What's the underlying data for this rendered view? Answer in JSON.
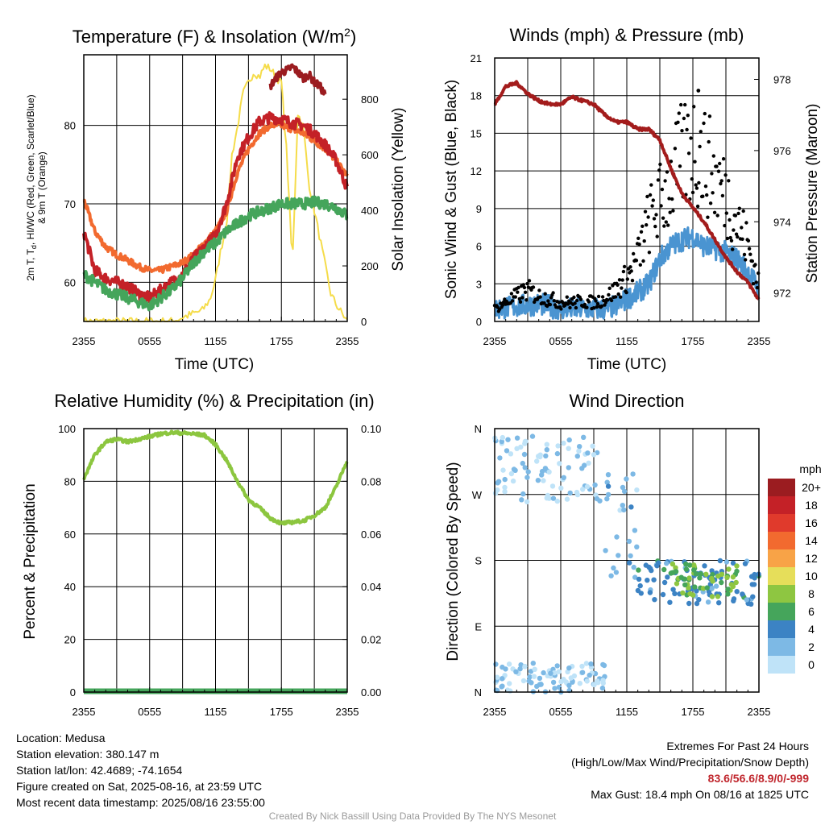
{
  "charts": {
    "temperature": {
      "title": "Temperature (F) & Insolation (W/m²)",
      "title_main": "Temperature (F) & Insolation (W/m",
      "title_sup": "2",
      "title_end": ")",
      "xlabel": "Time (UTC)",
      "ylabel_lines": [
        "2m T, T",
        "d",
        ", HI/WC (Red, Green, Scarlet/Blue)",
        "& 9m T (Orange)"
      ],
      "y2label": "Solar Insolation (Yellow)",
      "x_ticks": [
        "2355",
        "0555",
        "1155",
        "1755",
        "2355"
      ],
      "y_ticks": [
        "60",
        "70",
        "80"
      ],
      "y2_ticks": [
        "0",
        "200",
        "400",
        "600",
        "800"
      ]
    },
    "winds": {
      "title": "Winds (mph) & Pressure (mb)",
      "xlabel": "Time (UTC)",
      "ylabel": "Sonic Wind & Gust (Blue, Black)",
      "y2label": "Station Pressure (Maroon)",
      "x_ticks": [
        "2355",
        "0555",
        "1155",
        "1755",
        "2355"
      ],
      "y_ticks": [
        "0",
        "3",
        "6",
        "9",
        "12",
        "15",
        "18",
        "21"
      ],
      "y2_ticks": [
        "972",
        "974",
        "976",
        "978"
      ]
    },
    "humidity": {
      "title": "Relative Humidity (%) & Precipitation (in)",
      "ylabel": "Percent & Precipitation",
      "x_ticks": [
        "2355",
        "0555",
        "1155",
        "1755",
        "2355"
      ],
      "y_ticks": [
        "0",
        "20",
        "40",
        "60",
        "80",
        "100"
      ],
      "y2_ticks": [
        "0.00",
        "0.02",
        "0.04",
        "0.06",
        "0.08",
        "0.10"
      ]
    },
    "direction": {
      "title": "Wind Direction",
      "ylabel": "Direction (Colored By Speed)",
      "x_ticks": [
        "2355",
        "0555",
        "1155",
        "1755",
        "2355"
      ],
      "y_ticks": [
        "N",
        "E",
        "S",
        "W",
        "N"
      ],
      "legend_title": "mph",
      "legend_labels": [
        "20+",
        "18",
        "16",
        "14",
        "12",
        "10",
        "8",
        "6",
        "4",
        "2",
        "0"
      ],
      "legend_colors": [
        "#9b1c20",
        "#c42127",
        "#e03a2c",
        "#f26a2f",
        "#f8a347",
        "#e6de5a",
        "#8ec641",
        "#45a55b",
        "#3c83c4",
        "#7db9e5",
        "#bfe3f8"
      ]
    }
  },
  "chart_data": [
    {
      "type": "line",
      "x_ticks": [
        "2355",
        "0555",
        "1155",
        "1755",
        "2355"
      ],
      "xlim_hours": [
        0,
        24
      ],
      "ylim": [
        55,
        89
      ],
      "y2lim": [
        0,
        960
      ],
      "series": [
        {
          "color": "#c42127",
          "x": [
            0,
            1,
            2,
            3,
            4,
            5,
            6,
            7,
            8,
            9,
            10,
            11,
            12,
            13,
            14,
            15,
            16,
            17,
            18,
            19,
            20,
            21,
            22,
            23,
            24
          ],
          "y": [
            66.5,
            61.5,
            60.5,
            60,
            59.5,
            58.5,
            58,
            59,
            60,
            61,
            63,
            64.5,
            66,
            70,
            76,
            78.5,
            80.5,
            81,
            80.8,
            80.3,
            80,
            79,
            77.5,
            75.5,
            72
          ]
        },
        {
          "color": "#45a55b",
          "x": [
            0,
            1,
            2,
            3,
            4,
            5,
            6,
            7,
            8,
            9,
            10,
            11,
            12,
            13,
            14,
            15,
            16,
            17,
            18,
            19,
            20,
            21,
            22,
            23,
            24
          ],
          "y": [
            61,
            60,
            59,
            58.5,
            58,
            57.5,
            57,
            58,
            59,
            60.5,
            62.5,
            64,
            65,
            66.5,
            67.5,
            68.5,
            69,
            69.5,
            70,
            70,
            70,
            70.2,
            70,
            69.5,
            68.5
          ]
        },
        {
          "color": "#f26a2f",
          "x": [
            0,
            1,
            2,
            3,
            4,
            5,
            6,
            7,
            8,
            9,
            10,
            11,
            12,
            13,
            14,
            15,
            16,
            17,
            18,
            19,
            20,
            21,
            22,
            23,
            24
          ],
          "y": [
            70.5,
            66.5,
            64.5,
            63.5,
            62.8,
            62,
            61.5,
            61.5,
            62,
            62.5,
            63.5,
            65,
            66.5,
            69,
            74,
            77,
            79,
            80,
            80,
            79.5,
            79,
            78,
            77,
            75.5,
            73.5
          ]
        },
        {
          "color": "#9b1c20",
          "x": [
            17,
            17.5,
            18,
            18.5,
            19,
            19.5,
            20,
            20.5,
            21,
            21.5,
            22
          ],
          "y": [
            85,
            86,
            86.8,
            87,
            87.5,
            86.8,
            86,
            86.5,
            85.5,
            85,
            83.8
          ]
        },
        {
          "color": "#f5dc4a",
          "x": [
            0,
            8,
            10.8,
            11.5,
            12,
            12.5,
            13,
            13.5,
            14,
            14.5,
            15,
            15.5,
            16,
            16.5,
            17,
            17.5,
            18,
            18.5,
            19,
            19.5,
            20,
            20.5,
            21,
            21.5,
            22,
            22.5,
            23,
            23.5,
            24
          ],
          "y": [
            0,
            0,
            40,
            80,
            150,
            260,
            350,
            600,
            700,
            820,
            860,
            900,
            880,
            920,
            910,
            880,
            860,
            600,
            200,
            750,
            700,
            500,
            400,
            300,
            200,
            100,
            60,
            30,
            0
          ]
        }
      ]
    },
    {
      "type": "line",
      "x_ticks": [
        "2355",
        "0555",
        "1155",
        "1755",
        "2355"
      ],
      "xlim_hours": [
        0,
        24
      ],
      "ylim": [
        0,
        21
      ],
      "y2lim": [
        971.2,
        978.6
      ],
      "series": [
        {
          "color": "#4a94d1",
          "x": [
            0,
            2,
            4,
            6,
            8,
            10,
            11,
            12,
            13,
            14,
            15,
            16,
            17,
            18,
            19,
            20,
            21,
            22,
            23,
            24
          ],
          "y": [
            1,
            1.2,
            1.4,
            1,
            1,
            1,
            1.2,
            1.8,
            2.3,
            3,
            5,
            6,
            6.5,
            6.8,
            6,
            5.8,
            5.5,
            5,
            4,
            2.5
          ]
        },
        {
          "color": "#000000",
          "x": [
            0,
            1,
            2,
            3,
            4,
            5,
            6,
            7,
            8,
            9,
            10,
            11,
            12,
            13,
            14,
            15,
            16,
            17,
            18,
            19,
            20,
            21,
            22,
            23,
            24
          ],
          "y": [
            1,
            1.5,
            2,
            2.5,
            2,
            1.8,
            1.5,
            1.5,
            1.6,
            1.5,
            1.8,
            2.5,
            3.5,
            5,
            8,
            9.5,
            11,
            13,
            14,
            13,
            11.5,
            10,
            8,
            6,
            3
          ]
        },
        {
          "color": "#a31c1c",
          "x": [
            0,
            1,
            2,
            3,
            4,
            5,
            6,
            7,
            8,
            9,
            10,
            11,
            12,
            13,
            14,
            15,
            16,
            17,
            18,
            19,
            20,
            21,
            22,
            23,
            24
          ],
          "y": [
            977.3,
            977.8,
            977.9,
            977.6,
            977.4,
            977.3,
            977.3,
            977.5,
            977.4,
            977.3,
            977.0,
            976.8,
            976.8,
            976.6,
            976.6,
            976.3,
            975.5,
            974.8,
            974.4,
            974.0,
            973.5,
            973.0,
            972.6,
            972.3,
            971.8
          ]
        }
      ],
      "max_gust_point": {
        "x": 18.5,
        "y": 18.4
      }
    },
    {
      "type": "line",
      "x_ticks": [
        "2355",
        "0555",
        "1155",
        "1755",
        "2355"
      ],
      "xlim_hours": [
        0,
        24
      ],
      "ylim": [
        0,
        100
      ],
      "y2lim": [
        0,
        0.1
      ],
      "series": [
        {
          "color": "#8cc63f",
          "x": [
            0,
            1,
            2,
            3,
            4,
            5,
            6,
            7,
            8,
            9,
            10,
            11,
            12,
            13,
            14,
            15,
            16,
            17,
            18,
            19,
            20,
            21,
            22,
            23,
            24
          ],
          "y": [
            81,
            90,
            95,
            96,
            95,
            96,
            97,
            98,
            98.5,
            98.3,
            98,
            97.5,
            94,
            88,
            80,
            73,
            70,
            66,
            64,
            64.5,
            65,
            67,
            70,
            78,
            88
          ]
        },
        {
          "color": "#45a55b",
          "x": [
            0,
            24
          ],
          "y": [
            0,
            0
          ]
        }
      ]
    },
    {
      "type": "scatter",
      "x_ticks": [
        "2355",
        "0555",
        "1155",
        "1755",
        "2355"
      ],
      "xlim_hours": [
        0,
        24
      ],
      "ylim_degrees": [
        0,
        360
      ],
      "points_description": "direction points colored by speed bin",
      "clusters": [
        {
          "x_range": [
            0,
            10
          ],
          "dir_range": [
            260,
            350
          ],
          "speed": 1
        },
        {
          "x_range": [
            0,
            10
          ],
          "dir_range": [
            0,
            40
          ],
          "speed": 1
        },
        {
          "x_range": [
            10,
            13
          ],
          "dir_range": [
            150,
            300
          ],
          "speed": 2
        },
        {
          "x_range": [
            13,
            24
          ],
          "dir_range": [
            120,
            180
          ],
          "speed": 4
        },
        {
          "x_range": [
            16,
            22
          ],
          "dir_range": [
            130,
            175
          ],
          "speed": 7
        }
      ]
    }
  ],
  "info": {
    "location": "Location: Medusa",
    "elevation": "Station elevation: 380.147 m",
    "latlon": "Station lat/lon: 42.4689; -74.1654",
    "created": "Figure created on Sat, 2025-08-16, at 23:59 UTC",
    "recent": "Most recent data timestamp: 2025/08/16 23:55:00",
    "extremes_title": "Extremes For Past 24 Hours",
    "extremes_sub": "(High/Low/Max Wind/Precipitation/Snow Depth)",
    "extremes_values": "83.6/56.6/8.9/0/-999",
    "max_gust": "Max Gust: 18.4 mph On 08/16 at 1825 UTC",
    "credit": "Created By Nick Bassill Using Data Provided By The NYS Mesonet"
  }
}
